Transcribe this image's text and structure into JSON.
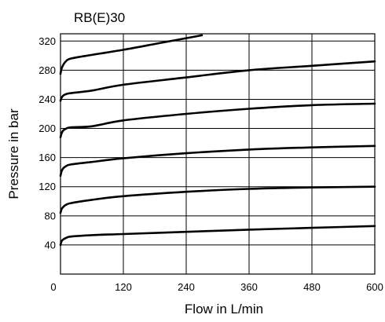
{
  "chart_data": {
    "type": "line",
    "title": "RB(E)30",
    "xlabel": "Flow in L/min",
    "ylabel": "Pressure in bar",
    "xlim": [
      0,
      600
    ],
    "ylim": [
      0,
      330
    ],
    "xticks": [
      0,
      120,
      240,
      360,
      480,
      600
    ],
    "xtick_labels": [
      "0",
      "120",
      "240",
      "360",
      "480",
      "600"
    ],
    "yticks": [
      40,
      80,
      120,
      160,
      200,
      240,
      280,
      320
    ],
    "ytick_labels": [
      "40",
      "80",
      "120",
      "160",
      "200",
      "240",
      "280",
      "320"
    ],
    "grid": true,
    "legend": "none",
    "line_color": "#000000",
    "series": [
      {
        "x": [
          0,
          2,
          5,
          10,
          20,
          60,
          120,
          240,
          360,
          480,
          600
        ],
        "y": [
          40,
          45,
          47.5,
          49.5,
          51.5,
          53.5,
          55,
          58,
          61,
          63.5,
          66
        ]
      },
      {
        "x": [
          0,
          2,
          5,
          10,
          20,
          60,
          120,
          240,
          360,
          480,
          600
        ],
        "y": [
          84,
          89,
          92,
          95,
          97.5,
          102,
          107,
          113,
          117,
          119,
          120
        ]
      },
      {
        "x": [
          0,
          2,
          5,
          10,
          20,
          60,
          120,
          240,
          360,
          480,
          600
        ],
        "y": [
          135,
          141,
          145,
          148,
          150.5,
          154,
          159,
          166,
          171,
          174,
          176
        ]
      },
      {
        "x": [
          0,
          2,
          5,
          10,
          20,
          60,
          120,
          240,
          360,
          480,
          600
        ],
        "y": [
          188,
          193,
          197,
          199.5,
          201.5,
          203,
          211,
          220,
          227,
          232,
          234
        ]
      },
      {
        "x": [
          0,
          2,
          5,
          10,
          20,
          60,
          120,
          240,
          360,
          480,
          600
        ],
        "y": [
          238,
          242,
          245,
          247,
          248.5,
          252,
          260,
          270,
          280,
          286,
          292
        ]
      },
      {
        "x": [
          0,
          2,
          5,
          10,
          20,
          60,
          120,
          180,
          240,
          270
        ],
        "y": [
          275,
          282,
          287,
          292,
          296,
          301,
          308,
          316,
          324,
          328
        ]
      }
    ]
  }
}
